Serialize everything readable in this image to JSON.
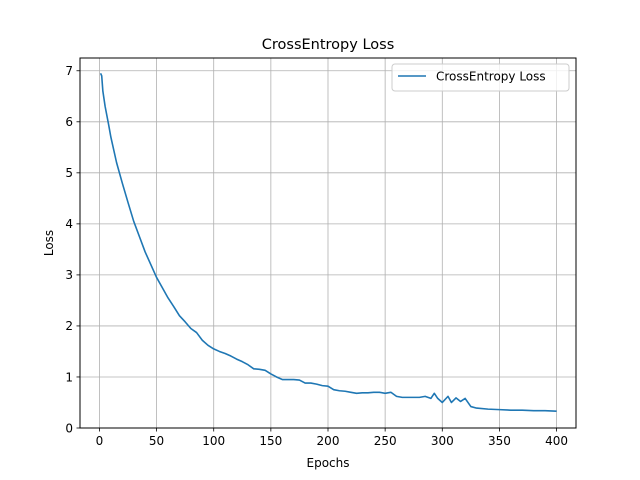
{
  "chart_data": {
    "type": "line",
    "title": "CrossEntropy Loss",
    "xlabel": "Epochs",
    "ylabel": "Loss",
    "xlim": [
      -17,
      417
    ],
    "ylim": [
      0,
      7.25
    ],
    "xticks": [
      0,
      50,
      100,
      150,
      200,
      250,
      300,
      350,
      400
    ],
    "yticks": [
      0,
      1,
      2,
      3,
      4,
      5,
      6,
      7
    ],
    "grid": true,
    "legend_position": "upper-right",
    "series": [
      {
        "name": "CrossEntropy Loss",
        "color": "#1f77b4",
        "x": [
          1,
          2,
          3,
          5,
          8,
          10,
          15,
          20,
          25,
          30,
          35,
          40,
          45,
          50,
          55,
          60,
          65,
          70,
          75,
          80,
          85,
          90,
          95,
          100,
          105,
          110,
          115,
          120,
          125,
          130,
          135,
          140,
          145,
          150,
          155,
          160,
          165,
          170,
          175,
          180,
          185,
          190,
          195,
          200,
          205,
          210,
          215,
          220,
          225,
          230,
          235,
          240,
          245,
          250,
          255,
          260,
          265,
          270,
          275,
          280,
          285,
          290,
          293,
          296,
          300,
          305,
          308,
          312,
          316,
          320,
          325,
          330,
          340,
          350,
          360,
          370,
          380,
          390,
          400
        ],
        "y": [
          6.95,
          6.9,
          6.6,
          6.3,
          5.95,
          5.7,
          5.2,
          4.8,
          4.42,
          4.05,
          3.75,
          3.45,
          3.2,
          2.95,
          2.75,
          2.55,
          2.38,
          2.2,
          2.08,
          1.95,
          1.87,
          1.72,
          1.62,
          1.55,
          1.5,
          1.46,
          1.41,
          1.35,
          1.3,
          1.24,
          1.16,
          1.15,
          1.13,
          1.06,
          1.0,
          0.95,
          0.95,
          0.95,
          0.94,
          0.88,
          0.88,
          0.86,
          0.83,
          0.82,
          0.75,
          0.73,
          0.72,
          0.7,
          0.68,
          0.69,
          0.69,
          0.7,
          0.7,
          0.68,
          0.7,
          0.62,
          0.6,
          0.6,
          0.6,
          0.6,
          0.62,
          0.58,
          0.68,
          0.58,
          0.5,
          0.62,
          0.5,
          0.59,
          0.52,
          0.58,
          0.42,
          0.39,
          0.37,
          0.36,
          0.35,
          0.35,
          0.34,
          0.34,
          0.33
        ]
      }
    ]
  }
}
